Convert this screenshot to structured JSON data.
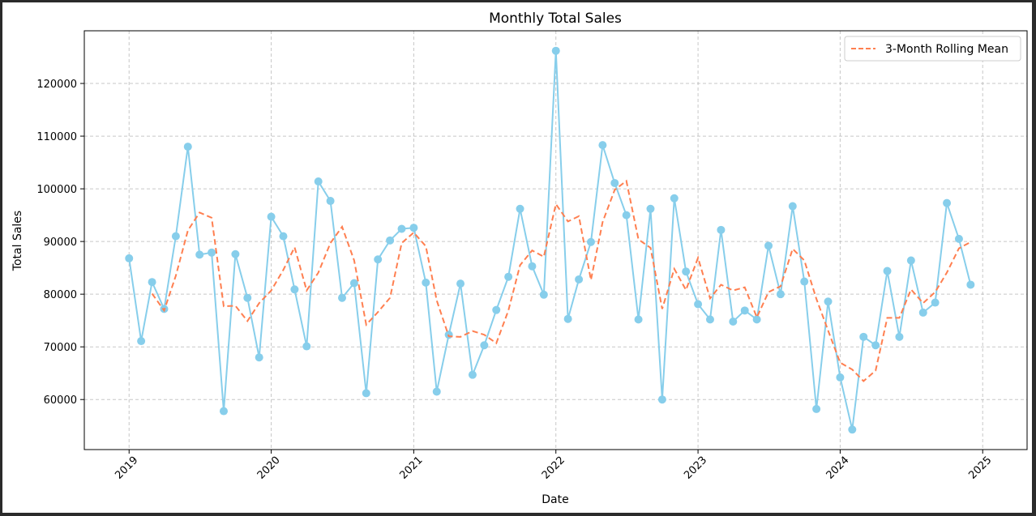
{
  "chart_data": {
    "type": "line",
    "title": "Monthly Total Sales",
    "xlabel": "Date",
    "ylabel": "Total Sales",
    "x_ticks": [
      "2019",
      "2020",
      "2021",
      "2022",
      "2023",
      "2024",
      "2025"
    ],
    "y_ticks": [
      60000,
      70000,
      80000,
      90000,
      100000,
      110000,
      120000
    ],
    "ylim": [
      50500,
      130000
    ],
    "xlim": [
      "2018-09-08",
      "2025-04-25"
    ],
    "grid": true,
    "legend_position": "top-right",
    "x": [
      "2019-01",
      "2019-02",
      "2019-03",
      "2019-04",
      "2019-05",
      "2019-06",
      "2019-07",
      "2019-08",
      "2019-09",
      "2019-10",
      "2019-11",
      "2019-12",
      "2020-01",
      "2020-02",
      "2020-03",
      "2020-04",
      "2020-05",
      "2020-06",
      "2020-07",
      "2020-08",
      "2020-09",
      "2020-10",
      "2020-11",
      "2020-12",
      "2021-01",
      "2021-02",
      "2021-03",
      "2021-04",
      "2021-05",
      "2021-06",
      "2021-07",
      "2021-08",
      "2021-09",
      "2021-10",
      "2021-11",
      "2021-12",
      "2022-01",
      "2022-02",
      "2022-03",
      "2022-04",
      "2022-05",
      "2022-06",
      "2022-07",
      "2022-08",
      "2022-09",
      "2022-10",
      "2022-11",
      "2022-12",
      "2023-01",
      "2023-02",
      "2023-03",
      "2023-04",
      "2023-05",
      "2023-06",
      "2023-07",
      "2023-08",
      "2023-09",
      "2023-10",
      "2023-11",
      "2023-12",
      "2024-01",
      "2024-02",
      "2024-03",
      "2024-04",
      "2024-05",
      "2024-06",
      "2024-07",
      "2024-08",
      "2024-09",
      "2024-10",
      "2024-11",
      "2024-12"
    ],
    "series": [
      {
        "name": "",
        "color": "#87ceeb",
        "style": "solid-with-markers",
        "values": [
          86800,
          71100,
          82300,
          77200,
          91000,
          108000,
          87500,
          87900,
          57800,
          87600,
          79300,
          68000,
          94700,
          91000,
          80900,
          70100,
          101400,
          97700,
          79300,
          82100,
          61200,
          86600,
          90200,
          92400,
          92600,
          82200,
          61500,
          72300,
          82000,
          64700,
          70300,
          77000,
          83300,
          96200,
          85300,
          79900,
          126200,
          75300,
          82800,
          89900,
          108300,
          101100,
          95000,
          75200,
          96200,
          60000,
          98200,
          84300,
          78100,
          75200,
          92200,
          74800,
          76900,
          75200,
          89200,
          80000,
          96700,
          82400,
          58200,
          78600,
          64200,
          54300,
          71900,
          70300,
          84400,
          71900,
          86400,
          76500,
          78400,
          97300,
          90500,
          81800
        ]
      },
      {
        "name": "3-Month Rolling Mean",
        "color": "#ff7f50",
        "style": "dashed",
        "values": [
          null,
          null,
          80100,
          76900,
          83500,
          92100,
          95500,
          94500,
          77700,
          77800,
          74900,
          78300,
          80700,
          84600,
          88900,
          80700,
          84100,
          89700,
          92800,
          86400,
          74200,
          76600,
          79300,
          89700,
          91700,
          89100,
          78800,
          72000,
          71900,
          73000,
          72300,
          70700,
          76900,
          85500,
          88300,
          87100,
          97100,
          93800,
          94800,
          82700,
          93700,
          99800,
          101500,
          90400,
          88800,
          77200,
          84800,
          80800,
          86900,
          79200,
          81800,
          80700,
          81300,
          75600,
          80400,
          81500,
          88600,
          86400,
          79100,
          73100,
          67000,
          65700,
          63500,
          65500,
          75500,
          75500,
          80900,
          78300,
          80400,
          84100,
          88700,
          89900
        ]
      }
    ]
  }
}
